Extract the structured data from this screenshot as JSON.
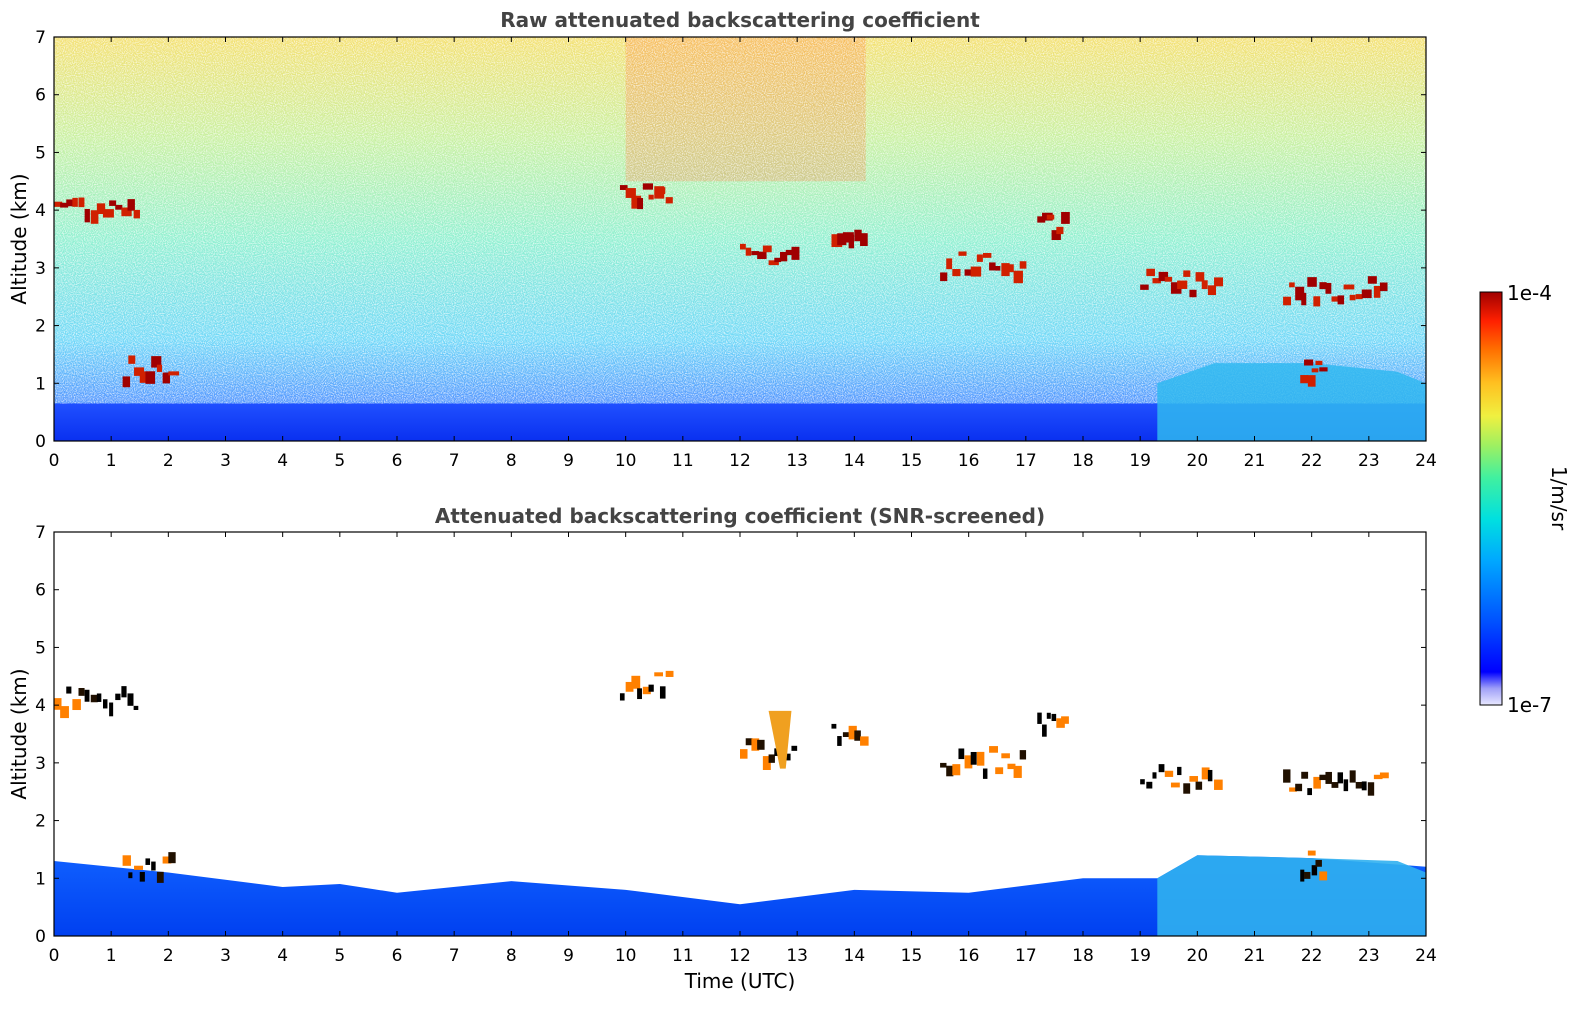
{
  "chart_data": [
    {
      "type": "heatmap",
      "title": "Raw attenuated backscattering coefficient",
      "xlabel": "",
      "ylabel": "Altitude (km)",
      "xlim": [
        0,
        24
      ],
      "ylim": [
        0,
        7
      ],
      "xticks": [
        "0",
        "1",
        "2",
        "3",
        "4",
        "5",
        "6",
        "7",
        "8",
        "9",
        "10",
        "11",
        "12",
        "13",
        "14",
        "15",
        "16",
        "17",
        "18",
        "19",
        "20",
        "21",
        "22",
        "23",
        "24"
      ],
      "yticks": [
        "0",
        "1",
        "2",
        "3",
        "4",
        "5",
        "6",
        "7"
      ],
      "description_values": {
        "boundary_layer_top_km": 0.6,
        "cloud_layers": [
          {
            "t_start": 0.0,
            "t_end": 1.5,
            "alt_km": 4.15
          },
          {
            "t_start": 1.2,
            "t_end": 2.1,
            "alt_km": 1.3
          },
          {
            "t_start": 9.9,
            "t_end": 10.8,
            "alt_km": 4.4
          },
          {
            "t_start": 12.0,
            "t_end": 13.0,
            "alt_km": 3.3
          },
          {
            "t_start": 13.6,
            "t_end": 14.2,
            "alt_km": 3.6
          },
          {
            "t_start": 15.5,
            "t_end": 17.0,
            "alt_km": 3.1
          },
          {
            "t_start": 17.2,
            "t_end": 17.7,
            "alt_km": 3.8
          },
          {
            "t_start": 19.0,
            "t_end": 20.4,
            "alt_km": 2.8
          },
          {
            "t_start": 21.5,
            "t_end": 23.3,
            "alt_km": 2.7
          },
          {
            "t_start": 21.8,
            "t_end": 22.2,
            "alt_km": 1.3
          }
        ]
      }
    },
    {
      "type": "heatmap",
      "title": "Attenuated backscattering coefficient (SNR-screened)",
      "xlabel": "Time (UTC)",
      "ylabel": "Altitude (km)",
      "xlim": [
        0,
        24
      ],
      "ylim": [
        0,
        7
      ],
      "xticks": [
        "0",
        "1",
        "2",
        "3",
        "4",
        "5",
        "6",
        "7",
        "8",
        "9",
        "10",
        "11",
        "12",
        "13",
        "14",
        "15",
        "16",
        "17",
        "18",
        "19",
        "20",
        "21",
        "22",
        "23",
        "24"
      ],
      "yticks": [
        "0",
        "1",
        "2",
        "3",
        "4",
        "5",
        "6",
        "7"
      ],
      "boundary_layer_top_km": [
        {
          "t": 0,
          "alt": 1.3
        },
        {
          "t": 2,
          "alt": 1.1
        },
        {
          "t": 4,
          "alt": 0.85
        },
        {
          "t": 5,
          "alt": 0.9
        },
        {
          "t": 6,
          "alt": 0.75
        },
        {
          "t": 8,
          "alt": 0.95
        },
        {
          "t": 10,
          "alt": 0.8
        },
        {
          "t": 12,
          "alt": 0.55
        },
        {
          "t": 14,
          "alt": 0.8
        },
        {
          "t": 16,
          "alt": 0.75
        },
        {
          "t": 18,
          "alt": 1.0
        },
        {
          "t": 19.3,
          "alt": 1.0
        },
        {
          "t": 20,
          "alt": 1.4
        },
        {
          "t": 22,
          "alt": 1.35
        },
        {
          "t": 24,
          "alt": 1.2
        }
      ]
    }
  ],
  "colorbar": {
    "max_label": "1e-4",
    "min_label": "1e-7",
    "unit_label": "1/m/sr"
  },
  "colors": {
    "title": "#444444",
    "colormap": [
      "#e8e8ff",
      "#a0a0f8",
      "#0000ff",
      "#0060ff",
      "#00b0ff",
      "#00e0e0",
      "#40f0a0",
      "#a0f060",
      "#f0f040",
      "#ffc020",
      "#ff7000",
      "#ff2000",
      "#a00000"
    ]
  }
}
